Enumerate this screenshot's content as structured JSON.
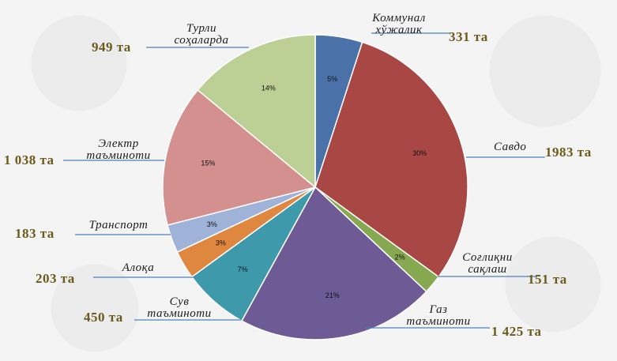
{
  "chart_data": {
    "type": "pie",
    "slices": [
      {
        "name_lines": [
          "Коммунал",
          "хўжалик"
        ],
        "count": "331 та",
        "value": 5,
        "pct_label": "5%",
        "color": "#4a72a8"
      },
      {
        "name_lines": [
          "Савдо"
        ],
        "count": "1983 та",
        "value": 30,
        "pct_label": "30%",
        "color": "#a84744"
      },
      {
        "name_lines": [
          "Соғлиқни",
          "сақлаш"
        ],
        "count": "151 та",
        "value": 2,
        "pct_label": "2%",
        "color": "#86a850"
      },
      {
        "name_lines": [
          "Газ",
          "таъминоти"
        ],
        "count": "1 425 та",
        "value": 21,
        "pct_label": "21%",
        "color": "#6e5b95"
      },
      {
        "name_lines": [
          "Сув",
          "таъминоти"
        ],
        "count": "450 та",
        "value": 7,
        "pct_label": "7%",
        "color": "#3e9aab"
      },
      {
        "name_lines": [
          "Алоқа"
        ],
        "count": "203 та",
        "value": 3,
        "pct_label": "3%",
        "color": "#df863f"
      },
      {
        "name_lines": [
          "Транспорт"
        ],
        "count": "183 та",
        "value": 3,
        "pct_label": "3%",
        "color": "#9fb3d8"
      },
      {
        "name_lines": [
          "Электр",
          "таъминоти"
        ],
        "count": "1 038 та",
        "value": 15,
        "pct_label": "15%",
        "color": "#d3908e"
      },
      {
        "name_lines": [
          "Турли",
          "соҳаларда"
        ],
        "count": "949 та",
        "value": 14,
        "pct_label": "14%",
        "color": "#bcd095"
      }
    ]
  }
}
